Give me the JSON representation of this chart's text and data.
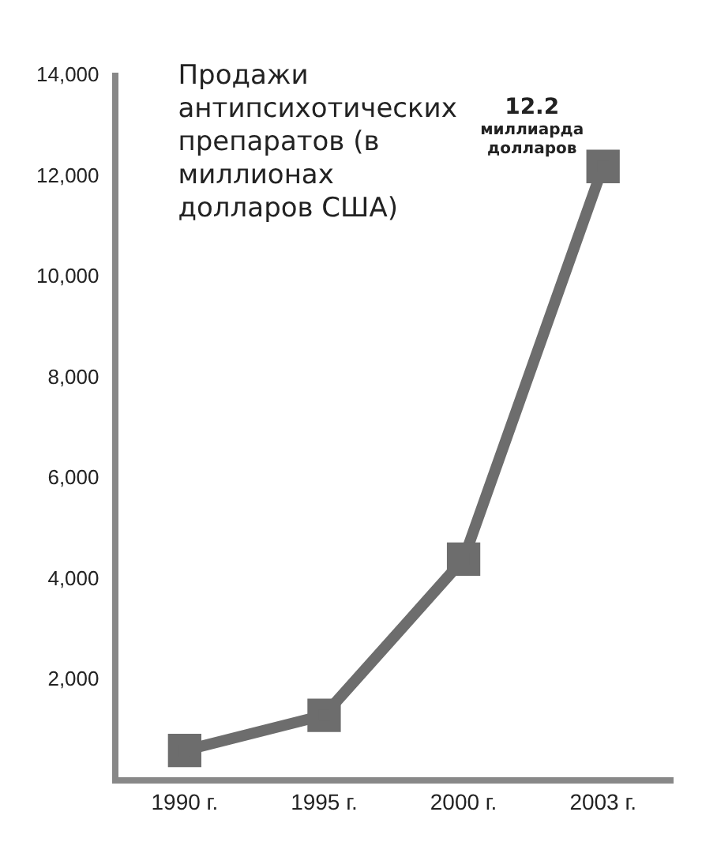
{
  "chart_data": {
    "type": "line",
    "title": "Продажи антипсихотических препаратов (в миллионах долларов США)",
    "categories": [
      "1990 г.",
      "1995 г.",
      "2000 г.",
      "2003 г."
    ],
    "series": [
      {
        "color": "#6d6d6d",
        "values": [
          600,
          1300,
          4400,
          12200
        ]
      }
    ],
    "ylim": [
      0,
      14000
    ],
    "yticks": [
      {
        "value": 2000,
        "label": "2,000"
      },
      {
        "value": 4000,
        "label": "4,000"
      },
      {
        "value": 6000,
        "label": "6,000"
      },
      {
        "value": 8000,
        "label": "8,000"
      },
      {
        "value": 10000,
        "label": "10,000"
      },
      {
        "value": 12000,
        "label": "12,000"
      },
      {
        "value": 14000,
        "label": "14,000"
      }
    ],
    "annotations": [
      {
        "text": "12.2 миллиарда долларов",
        "x": "2003 г.",
        "y": 12200
      }
    ],
    "grid": false,
    "legend": false,
    "marker": "square",
    "line_style": "solid"
  }
}
